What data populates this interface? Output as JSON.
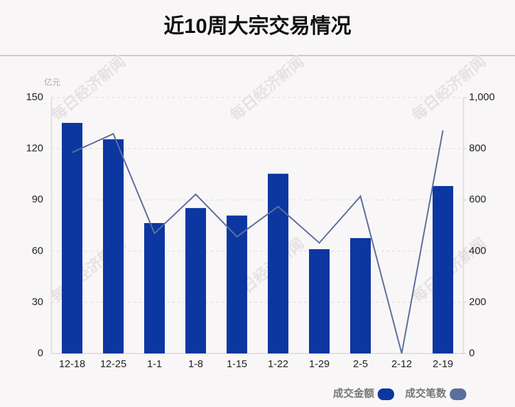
{
  "chart_data": {
    "type": "bar_line",
    "title": "近10周大宗交易情况",
    "y_unit": "亿元",
    "watermark": "每日经济新闻",
    "categories": [
      "12-18",
      "12-25",
      "1-1",
      "1-8",
      "1-15",
      "1-22",
      "1-29",
      "2-5",
      "2-12",
      "2-19"
    ],
    "series": [
      {
        "name": "成交金额",
        "color": "#0c36a0",
        "type": "bar",
        "values": [
          135.1,
          125.5,
          76.4,
          85.2,
          80.8,
          105.3,
          61.1,
          67.6,
          0,
          98.1
        ]
      },
      {
        "name": "成交笔数",
        "color": "#5b6f9c",
        "type": "line",
        "axis": "y2",
        "values": [
          785,
          858,
          469,
          622,
          456,
          574,
          432,
          614,
          0,
          871
        ]
      }
    ],
    "ylim": [
      0,
      150
    ],
    "yticks": [
      0,
      30,
      60,
      90,
      120,
      150
    ],
    "y2lim": [
      0,
      1000
    ],
    "y2ticks": [
      0,
      200,
      400,
      600,
      800,
      {
        "value": 1000,
        "label": "1,000"
      }
    ],
    "grid": true,
    "legend": "bottom-right"
  }
}
